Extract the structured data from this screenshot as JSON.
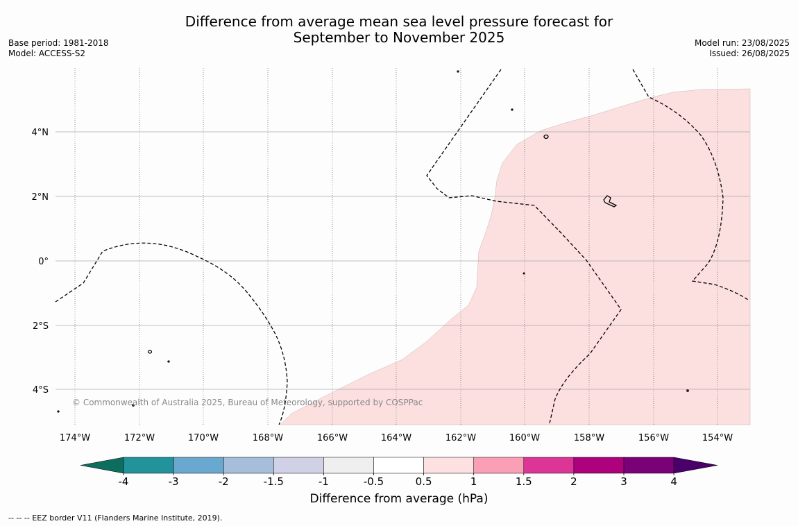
{
  "title": {
    "line1": "Difference from average mean sea level pressure forecast for",
    "line2": "September to November 2025"
  },
  "meta_left": {
    "base_period": "Base period: 1981-2018",
    "model": "Model: ACCESS-S2"
  },
  "meta_right": {
    "model_run": "Model run: 23/08/2025",
    "issued": "Issued: 26/08/2025"
  },
  "map": {
    "lon_ticks": [
      "174°W",
      "172°W",
      "170°W",
      "168°W",
      "166°W",
      "164°W",
      "162°W",
      "160°W",
      "158°W",
      "156°W",
      "154°W"
    ],
    "lat_ticks": [
      "4°N",
      "2°N",
      "0°",
      "2°S",
      "4°S"
    ],
    "copyright": "© Commonwealth of Australia 2025, Bureau of Meteorology, supported by COSPPac",
    "fill_color": "#fcdfdf",
    "fill_class": "0.5 to 1 hPa"
  },
  "colorbar": {
    "ticks": [
      "-4",
      "-3",
      "-2",
      "-1.5",
      "-1",
      "-0.5",
      "0.5",
      "1",
      "1.5",
      "2",
      "3",
      "4"
    ],
    "colors": [
      "#0e6e5e",
      "#23939b",
      "#6aa9cf",
      "#a6bddb",
      "#d0d1e6",
      "#efefef",
      "#ffffff",
      "#fde0e0",
      "#fa9fb5",
      "#dd3497",
      "#ae017e",
      "#7a0177",
      "#49006a"
    ],
    "label": "Difference from average (hPa)"
  },
  "footnote": "--  --  -- EEZ border V11 (Flanders Marine Institute, 2019)."
}
